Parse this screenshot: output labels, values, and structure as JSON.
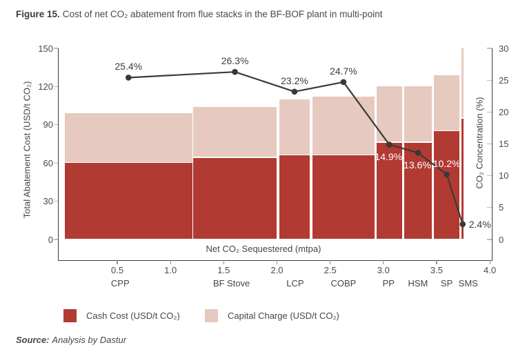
{
  "title": {
    "prefix": "Figure 15.",
    "text": "Cost of net CO₂ abatement from flue stacks in the BF-BOF plant in multi-point"
  },
  "source": {
    "prefix": "Source:",
    "text": "Analysis by Dastur"
  },
  "colors": {
    "cash": "#b13a32",
    "capital": "#e6c9bf",
    "line": "#3a3a3a",
    "dot": "#383838",
    "axis": "#3c3c3c",
    "tick_text": "#434b52",
    "label_dark": "#3b3d3f",
    "label_white": "#ffffff"
  },
  "legend": [
    {
      "label": "Cash Cost (USD/t CO₂)",
      "color_key": "cash"
    },
    {
      "label": "Capital Charge (USD/t CO₂)",
      "color_key": "capital"
    }
  ],
  "chart_data": {
    "type": "bar",
    "subtype": "variable-width stacked bars with overlaid line (dual axis)",
    "title": "Cost of net CO₂ abatement from flue stacks in the BF-BOF plant in multi-point",
    "x_axis": {
      "label": "Net CO₂ Sequestered (mtpa)",
      "range": [
        0,
        4
      ],
      "ticks": [
        {
          "v": 0.5,
          "label": "0.5"
        },
        {
          "v": 1.0,
          "label": "1.0"
        },
        {
          "v": 1.5,
          "label": "1.5"
        },
        {
          "v": 2.0,
          "label": "2.0"
        },
        {
          "v": 2.5,
          "label": "2.5"
        },
        {
          "v": 3.0,
          "label": "3.0"
        },
        {
          "v": 3.5,
          "label": "3.5"
        },
        {
          "v": 4.0,
          "label": "4.0"
        }
      ]
    },
    "y_left": {
      "label": "Total Abatement Cost (USD/t CO₂)",
      "range": [
        0,
        150
      ],
      "ticks": [
        {
          "v": 0,
          "label": "0"
        },
        {
          "v": 30,
          "label": "30"
        },
        {
          "v": 60,
          "label": "60"
        },
        {
          "v": 90,
          "label": "90"
        },
        {
          "v": 120,
          "label": "120"
        },
        {
          "v": 150,
          "label": "150"
        }
      ]
    },
    "y_right": {
      "label": "CO₂ Concentration (%)",
      "range": [
        0,
        30
      ],
      "ticks": [
        {
          "v": 0,
          "label": "0"
        },
        {
          "v": 5,
          "label": "5"
        },
        {
          "v": 10,
          "label": "10"
        },
        {
          "v": 15,
          "label": "15"
        },
        {
          "v": 20,
          "label": "20"
        },
        {
          "v": 25,
          "label": "25"
        },
        {
          "v": 30,
          "label": "30"
        }
      ]
    },
    "series": [
      {
        "name": "Cash Cost (USD/t CO₂)",
        "type": "stacked-bar segment"
      },
      {
        "name": "Capital Charge (USD/t CO₂)",
        "type": "stacked-bar segment"
      },
      {
        "name": "CO₂ Concentration (%)",
        "type": "line",
        "axis": "right"
      }
    ],
    "bars": [
      {
        "name": "CPP",
        "x_start": 0.0,
        "x_end": 1.21,
        "cash": 60,
        "capital": 39,
        "co2_pct": 25.4,
        "co2_label": "25.4%",
        "label_pos": "above",
        "label_white": false
      },
      {
        "name": "BF Stove",
        "x_start": 1.21,
        "x_end": 2.0,
        "cash": 64,
        "capital": 40,
        "co2_pct": 26.3,
        "co2_label": "26.3%",
        "label_pos": "above",
        "label_white": false
      },
      {
        "name": "LCP",
        "x_start": 2.02,
        "x_end": 2.31,
        "cash": 66,
        "capital": 44,
        "co2_pct": 23.2,
        "co2_label": "23.2%",
        "label_pos": "above",
        "label_white": false
      },
      {
        "name": "COBP",
        "x_start": 2.33,
        "x_end": 2.92,
        "cash": 66,
        "capital": 46,
        "co2_pct": 24.7,
        "co2_label": "24.7%",
        "label_pos": "above",
        "label_white": false
      },
      {
        "name": "PP",
        "x_start": 2.93,
        "x_end": 3.18,
        "cash": 76,
        "capital": 44,
        "co2_pct": 14.9,
        "co2_label": "14.9%",
        "label_pos": "below",
        "label_white": true
      },
      {
        "name": "HSM",
        "x_start": 3.19,
        "x_end": 3.46,
        "cash": 76,
        "capital": 44,
        "co2_pct": 13.6,
        "co2_label": "13.6%",
        "label_pos": "below",
        "label_white": true
      },
      {
        "name": "SP",
        "x_start": 3.47,
        "x_end": 3.72,
        "cash": 85,
        "capital": 44,
        "co2_pct": 10.2,
        "co2_label": "10.2%",
        "label_pos": "above",
        "label_white": true
      },
      {
        "name": "SMS",
        "x_start": 3.73,
        "x_end": 3.76,
        "cash": 95,
        "capital": 55,
        "co2_pct": 2.4,
        "co2_label": "2.4%",
        "label_pos": "right",
        "label_white": false
      }
    ],
    "layout_hints": {
      "grid": false,
      "legend_position": "bottom-left",
      "bars_clipped_at_top": [
        "SMS"
      ]
    }
  }
}
